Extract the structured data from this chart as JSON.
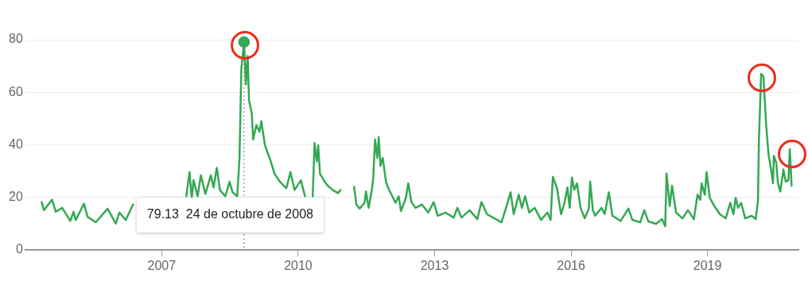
{
  "chart_data": {
    "type": "line",
    "xlim": [
      2004,
      2021
    ],
    "xticks": [
      2007,
      2010,
      2013,
      2016,
      2019
    ],
    "ylim": [
      0,
      80
    ],
    "yticks": [
      0,
      20,
      40,
      60,
      80
    ],
    "grid": "y",
    "legend": false,
    "line_style": "solid",
    "series": [
      {
        "type": "scatter",
        "marker": "circle",
        "color": "#34a853",
        "x": [
          2008.81
        ],
        "values": [
          79.13
        ]
      },
      {
        "marker": "none",
        "color": "#34a853",
        "x": [
          2004.36,
          2004.41,
          2004.59,
          2004.67,
          2004.81,
          2004.99,
          2005.06,
          2005.11,
          2005.29,
          2005.37,
          2005.55,
          2005.81,
          2005.99,
          2006.07,
          2006.21,
          2006.37,
          2006.45,
          2007.54,
          2007.61,
          2007.66,
          2007.7,
          2007.79,
          2007.86,
          2007.96,
          2008.08,
          2008.14,
          2008.21,
          2008.28,
          2008.4,
          2008.49,
          2008.56,
          2008.66,
          2008.71,
          2008.75,
          2008.81,
          2008.85,
          2008.89,
          2008.92,
          2008.98,
          2009.01,
          2009.08,
          2009.15,
          2009.19,
          2009.27,
          2009.4,
          2009.48,
          2009.6,
          2009.74,
          2009.83,
          2009.92,
          2010.06,
          2010.15,
          2010.2,
          2010.32,
          2010.36,
          2010.41,
          2010.44,
          2010.48,
          2010.58,
          2010.65,
          2010.76,
          2010.88,
          2010.93,
          2011.0,
          2011.23,
          2011.28,
          2011.35,
          2011.46,
          2011.49,
          2011.55,
          2011.62,
          2011.65,
          2011.69,
          2011.74,
          2011.77,
          2011.81,
          2011.86,
          2011.93,
          2011.98,
          2012.07,
          2012.14,
          2012.21,
          2012.26,
          2012.37,
          2012.42,
          2012.49,
          2012.58,
          2012.72,
          2012.86,
          2012.98,
          2013.07,
          2013.24,
          2013.42,
          2013.5,
          2013.59,
          2013.77,
          2013.94,
          2014.03,
          2014.15,
          2014.47,
          2014.57,
          2014.67,
          2014.74,
          2014.85,
          2014.92,
          2014.99,
          2015.08,
          2015.2,
          2015.34,
          2015.48,
          2015.55,
          2015.6,
          2015.69,
          2015.78,
          2015.86,
          2015.92,
          2015.97,
          2016.02,
          2016.07,
          2016.13,
          2016.21,
          2016.3,
          2016.39,
          2016.42,
          2016.48,
          2016.53,
          2016.67,
          2016.74,
          2016.83,
          2016.91,
          2017.09,
          2017.26,
          2017.35,
          2017.52,
          2017.61,
          2017.7,
          2017.87,
          2018.0,
          2018.07,
          2018.1,
          2018.17,
          2018.22,
          2018.31,
          2018.45,
          2018.57,
          2018.7,
          2018.78,
          2018.84,
          2018.87,
          2018.94,
          2018.98,
          2019.05,
          2019.15,
          2019.27,
          2019.4,
          2019.5,
          2019.57,
          2019.62,
          2019.67,
          2019.74,
          2019.83,
          2019.97,
          2020.06,
          2020.11,
          2020.13,
          2020.18,
          2020.23,
          2020.29,
          2020.34,
          2020.41,
          2020.44,
          2020.46,
          2020.51,
          2020.55,
          2020.6,
          2020.67,
          2020.72,
          2020.78,
          2020.81,
          2020.85
        ],
        "values": [
          18.2,
          15.1,
          19.1,
          14.5,
          16,
          11,
          14.5,
          11.4,
          17.6,
          12.6,
          10.5,
          15.7,
          10,
          14.2,
          11.4,
          17.3,
          null,
          20.4,
          29.6,
          19.8,
          26.5,
          20.4,
          28.4,
          21.3,
          28.4,
          23.8,
          31.2,
          22.8,
          20.4,
          25.9,
          21.9,
          20.4,
          35,
          69,
          79.13,
          63,
          73.8,
          56.8,
          52,
          42,
          47.5,
          45,
          49,
          39.8,
          33.6,
          29,
          25.9,
          23.5,
          29.6,
          22.8,
          26.5,
          20.4,
          null,
          20.4,
          40.7,
          33.6,
          39.8,
          29,
          26,
          24.4,
          22.8,
          21.6,
          22.8,
          null,
          24,
          17.3,
          15.7,
          17.9,
          22.2,
          16,
          22.8,
          27,
          42,
          35,
          42.9,
          32,
          35,
          26,
          23.5,
          20.4,
          17.9,
          20.4,
          14.8,
          19.8,
          25.3,
          18.2,
          16,
          17.3,
          14.2,
          18.2,
          13,
          14.2,
          12.3,
          16,
          12.3,
          15.1,
          11.7,
          18.2,
          13.6,
          10.5,
          16,
          21.9,
          13.6,
          21,
          16,
          20.4,
          14.2,
          16,
          11.4,
          14.2,
          11.4,
          27.8,
          23.5,
          13.6,
          18.2,
          23.8,
          16,
          27.5,
          22.8,
          25.3,
          16,
          12,
          15.7,
          26,
          15.1,
          13,
          16,
          13.6,
          21.9,
          13,
          11,
          15.7,
          11.4,
          10.5,
          15.1,
          10.8,
          9.9,
          11.7,
          9,
          29,
          16.7,
          24.4,
          14.2,
          12,
          15.1,
          11.7,
          21,
          19.1,
          25.3,
          21,
          29.6,
          19.8,
          16.7,
          13.6,
          12,
          17.9,
          13.6,
          19.8,
          16,
          17.9,
          12,
          13,
          11.7,
          18.8,
          41.4,
          67,
          66,
          47.5,
          36.7,
          29,
          25.3,
          35.8,
          33.3,
          25.3,
          22.2,
          30.6,
          26,
          26.5,
          38.3,
          24.4
        ]
      }
    ],
    "ref_lines": [
      {
        "axis": "x",
        "value": 2008.81,
        "line_style": "dotted",
        "color": "#777777"
      }
    ],
    "annotations": [
      "79.13  24 de octubre de 2008"
    ]
  }
}
